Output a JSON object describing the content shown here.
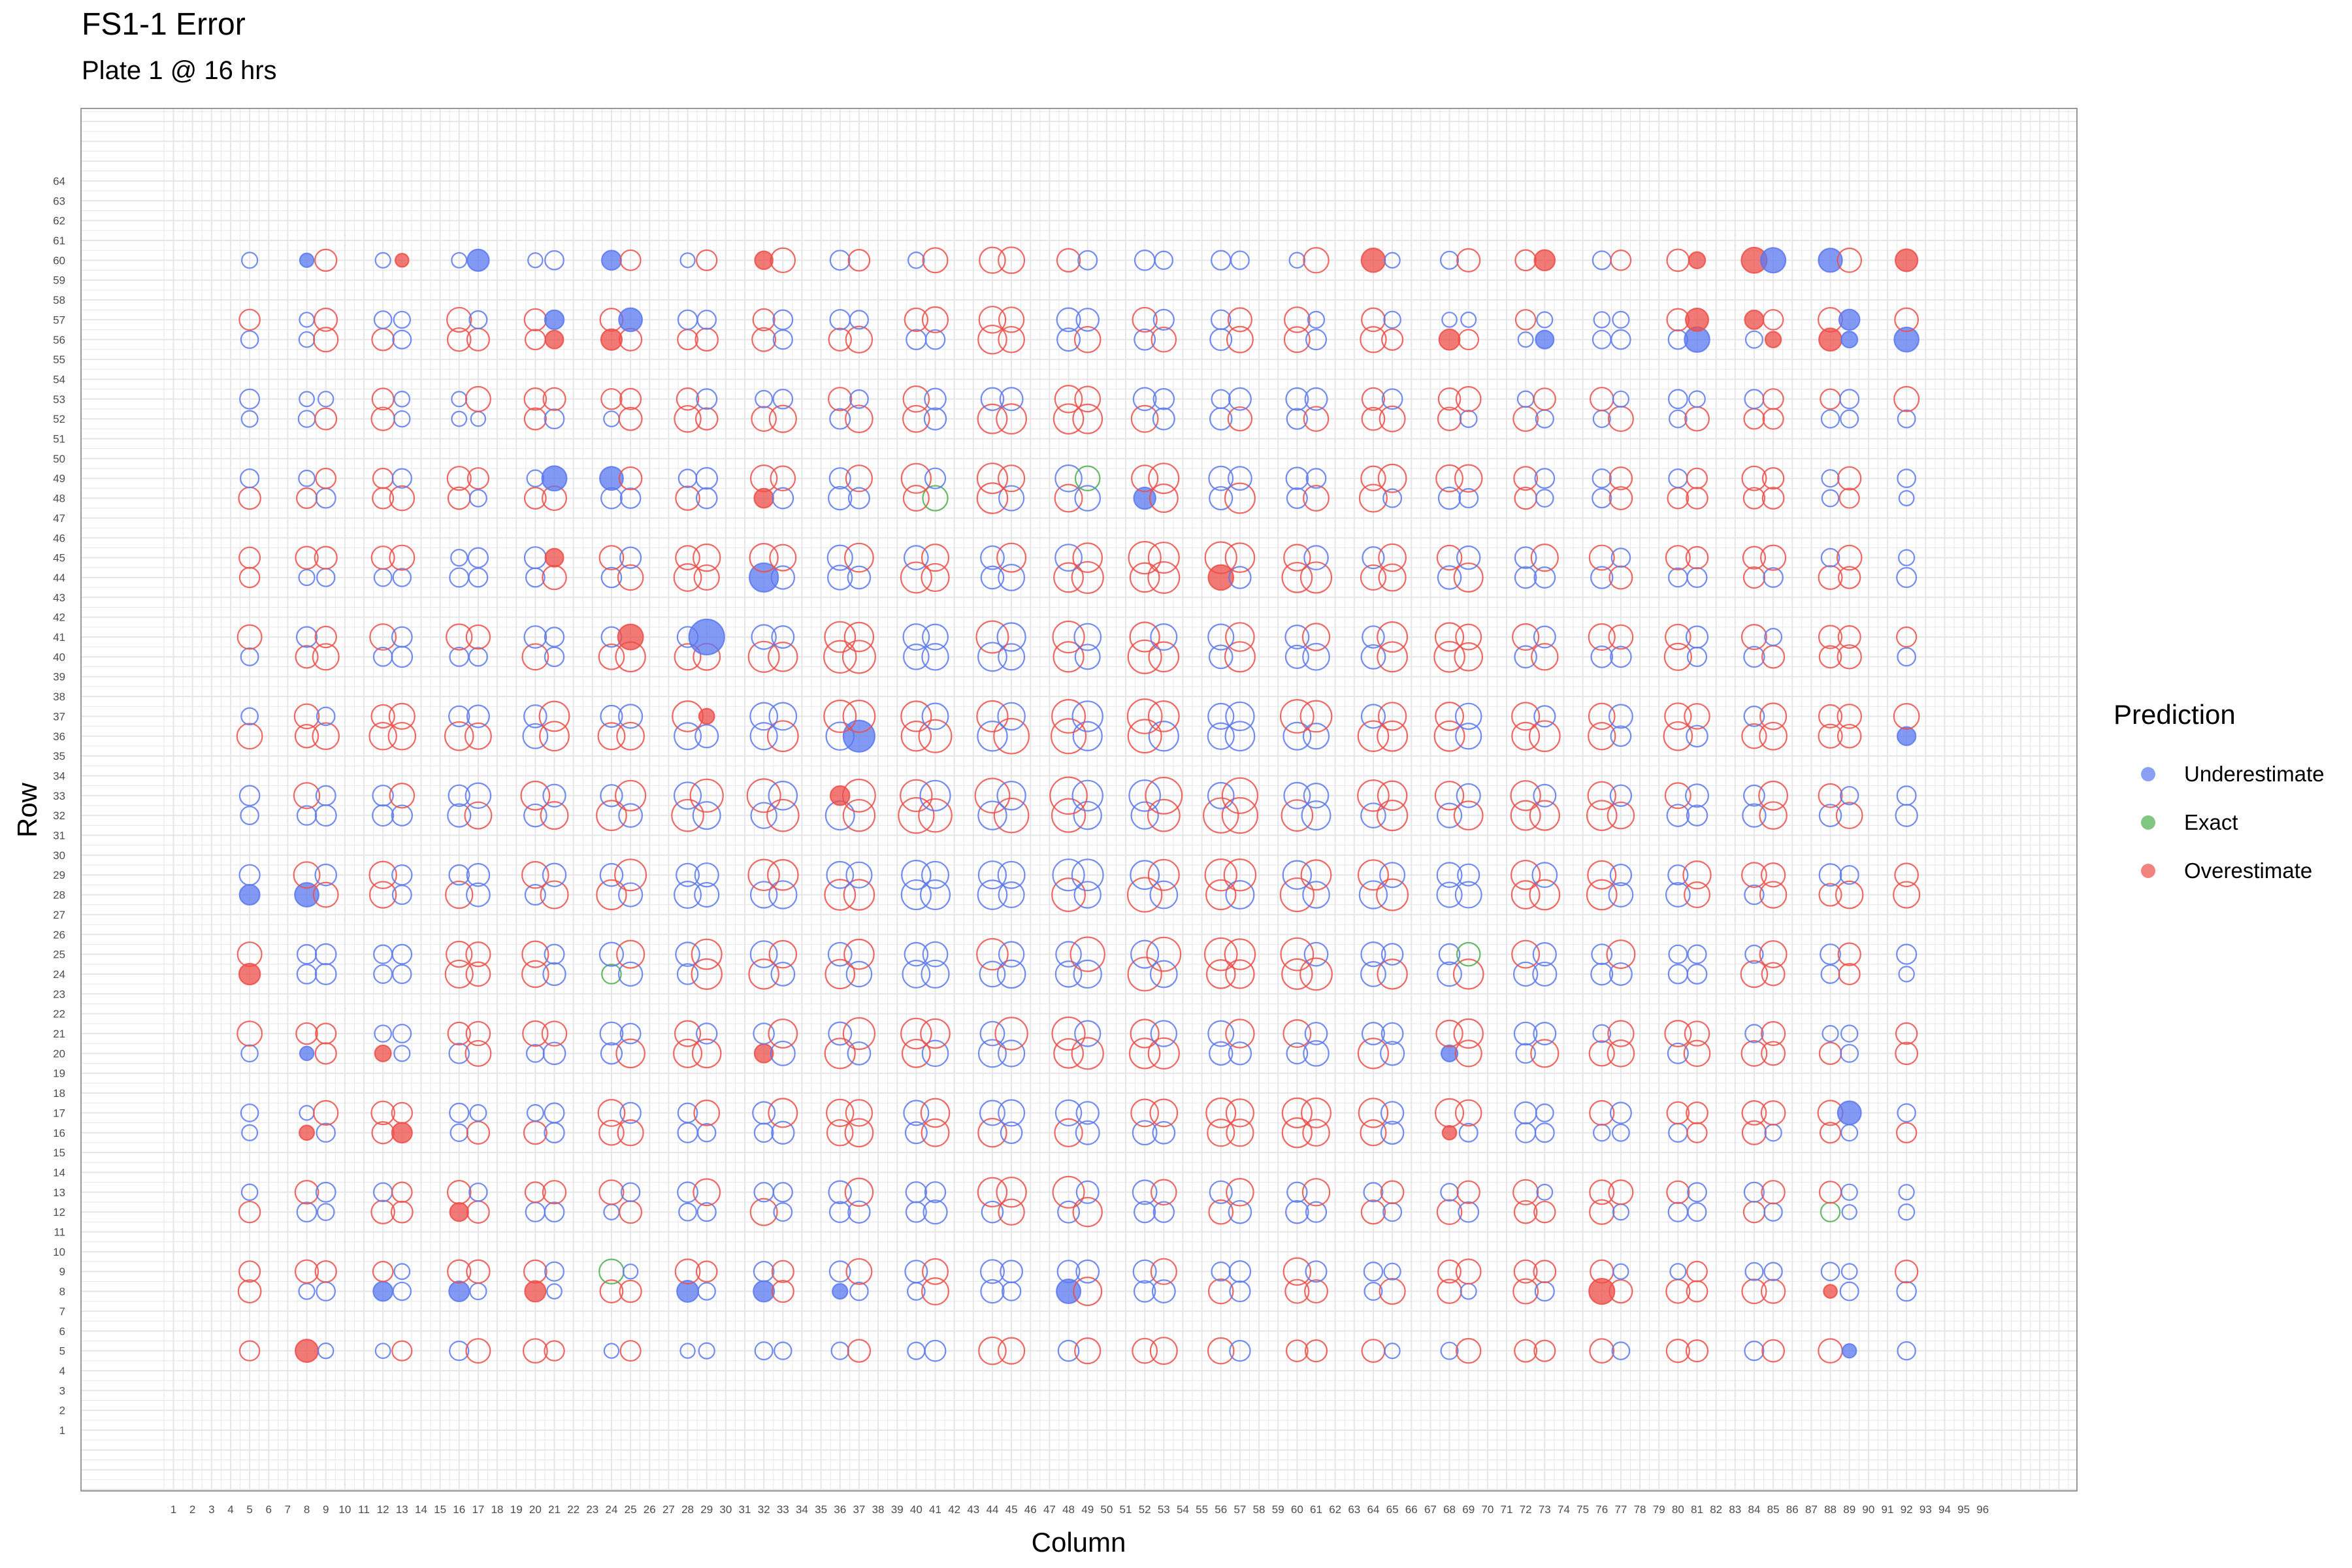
{
  "title": "FS1-1 Error",
  "subtitle": "Plate 1 @ 16 hrs",
  "chart_data": {
    "type": "scatter",
    "xlabel": "Column",
    "ylabel": "Row",
    "xlim": [
      1,
      96
    ],
    "ylim": [
      1,
      64
    ],
    "grid": true,
    "legend_title": "Prediction",
    "legend_position": "right",
    "categories": [
      "Underestimate",
      "Exact",
      "Overestimate"
    ],
    "colors": {
      "Underestimate": "#5a78f0",
      "Exact": "#4cae4c",
      "Overestimate": "#ee4e48"
    },
    "size_by": "absolute error",
    "column_pairs": [
      [
        5,
        5
      ],
      [
        8,
        9
      ],
      [
        12,
        13
      ],
      [
        16,
        17
      ],
      [
        20,
        21
      ],
      [
        24,
        25
      ],
      [
        28,
        29
      ],
      [
        32,
        33
      ],
      [
        36,
        37
      ],
      [
        40,
        41
      ],
      [
        44,
        45
      ],
      [
        48,
        49
      ],
      [
        52,
        53
      ],
      [
        56,
        57
      ],
      [
        60,
        61
      ],
      [
        64,
        65
      ],
      [
        68,
        69
      ],
      [
        72,
        73
      ],
      [
        76,
        77
      ],
      [
        80,
        81
      ],
      [
        84,
        85
      ],
      [
        88,
        89
      ],
      [
        92,
        92
      ]
    ],
    "row_pairs": [
      [
        5,
        5
      ],
      [
        8,
        9
      ],
      [
        12,
        13
      ],
      [
        16,
        17
      ],
      [
        20,
        21
      ],
      [
        24,
        25
      ],
      [
        28,
        29
      ],
      [
        32,
        33
      ],
      [
        36,
        37
      ],
      [
        40,
        41
      ],
      [
        44,
        45
      ],
      [
        48,
        49
      ],
      [
        52,
        53
      ],
      [
        56,
        57
      ],
      [
        60,
        60
      ]
    ],
    "filled_points": [
      {
        "x": 8,
        "y": 60,
        "prediction": "Underestimate"
      },
      {
        "x": 13,
        "y": 60,
        "prediction": "Overestimate"
      },
      {
        "x": 17,
        "y": 60,
        "prediction": "Underestimate"
      },
      {
        "x": 24,
        "y": 60,
        "prediction": "Underestimate"
      },
      {
        "x": 32,
        "y": 60,
        "prediction": "Overestimate"
      },
      {
        "x": 64,
        "y": 60,
        "prediction": "Overestimate"
      },
      {
        "x": 73,
        "y": 60,
        "prediction": "Overestimate"
      },
      {
        "x": 81,
        "y": 60,
        "prediction": "Overestimate"
      },
      {
        "x": 84,
        "y": 60,
        "prediction": "Overestimate"
      },
      {
        "x": 85,
        "y": 60,
        "prediction": "Underestimate"
      },
      {
        "x": 88,
        "y": 60,
        "prediction": "Underestimate"
      },
      {
        "x": 92,
        "y": 60,
        "prediction": "Overestimate"
      },
      {
        "x": 21,
        "y": 57,
        "prediction": "Underestimate"
      },
      {
        "x": 25,
        "y": 57,
        "prediction": "Underestimate"
      },
      {
        "x": 81,
        "y": 57,
        "prediction": "Overestimate"
      },
      {
        "x": 84,
        "y": 57,
        "prediction": "Overestimate"
      },
      {
        "x": 89,
        "y": 57,
        "prediction": "Underestimate"
      },
      {
        "x": 21,
        "y": 56,
        "prediction": "Overestimate"
      },
      {
        "x": 24,
        "y": 56,
        "prediction": "Overestimate"
      },
      {
        "x": 68,
        "y": 56,
        "prediction": "Overestimate"
      },
      {
        "x": 73,
        "y": 56,
        "prediction": "Underestimate"
      },
      {
        "x": 81,
        "y": 56,
        "prediction": "Underestimate"
      },
      {
        "x": 85,
        "y": 56,
        "prediction": "Overestimate"
      },
      {
        "x": 88,
        "y": 56,
        "prediction": "Overestimate"
      },
      {
        "x": 89,
        "y": 56,
        "prediction": "Underestimate"
      },
      {
        "x": 92,
        "y": 56,
        "prediction": "Underestimate"
      },
      {
        "x": 21,
        "y": 49,
        "prediction": "Underestimate"
      },
      {
        "x": 24,
        "y": 49,
        "prediction": "Underestimate"
      },
      {
        "x": 32,
        "y": 48,
        "prediction": "Overestimate"
      },
      {
        "x": 52,
        "y": 48,
        "prediction": "Underestimate"
      },
      {
        "x": 21,
        "y": 45,
        "prediction": "Overestimate"
      },
      {
        "x": 32,
        "y": 44,
        "prediction": "Underestimate"
      },
      {
        "x": 56,
        "y": 44,
        "prediction": "Overestimate"
      },
      {
        "x": 25,
        "y": 41,
        "prediction": "Overestimate"
      },
      {
        "x": 29,
        "y": 41,
        "prediction": "Underestimate"
      },
      {
        "x": 29,
        "y": 37,
        "prediction": "Overestimate"
      },
      {
        "x": 37,
        "y": 36,
        "prediction": "Underestimate"
      },
      {
        "x": 92,
        "y": 36,
        "prediction": "Underestimate"
      },
      {
        "x": 36,
        "y": 33,
        "prediction": "Overestimate"
      },
      {
        "x": 5,
        "y": 28,
        "prediction": "Underestimate"
      },
      {
        "x": 8,
        "y": 28,
        "prediction": "Underestimate"
      },
      {
        "x": 5,
        "y": 24,
        "prediction": "Overestimate"
      },
      {
        "x": 8,
        "y": 20,
        "prediction": "Underestimate"
      },
      {
        "x": 12,
        "y": 20,
        "prediction": "Overestimate"
      },
      {
        "x": 32,
        "y": 20,
        "prediction": "Overestimate"
      },
      {
        "x": 68,
        "y": 20,
        "prediction": "Underestimate"
      },
      {
        "x": 89,
        "y": 17,
        "prediction": "Underestimate"
      },
      {
        "x": 8,
        "y": 16,
        "prediction": "Overestimate"
      },
      {
        "x": 13,
        "y": 16,
        "prediction": "Overestimate"
      },
      {
        "x": 68,
        "y": 16,
        "prediction": "Overestimate"
      },
      {
        "x": 16,
        "y": 12,
        "prediction": "Overestimate"
      },
      {
        "x": 12,
        "y": 8,
        "prediction": "Underestimate"
      },
      {
        "x": 16,
        "y": 8,
        "prediction": "Underestimate"
      },
      {
        "x": 20,
        "y": 8,
        "prediction": "Overestimate"
      },
      {
        "x": 28,
        "y": 8,
        "prediction": "Underestimate"
      },
      {
        "x": 32,
        "y": 8,
        "prediction": "Underestimate"
      },
      {
        "x": 36,
        "y": 8,
        "prediction": "Underestimate"
      },
      {
        "x": 48,
        "y": 8,
        "prediction": "Underestimate"
      },
      {
        "x": 76,
        "y": 8,
        "prediction": "Overestimate"
      },
      {
        "x": 88,
        "y": 8,
        "prediction": "Overestimate"
      },
      {
        "x": 8,
        "y": 5,
        "prediction": "Overestimate"
      },
      {
        "x": 89,
        "y": 5,
        "prediction": "Underestimate"
      }
    ],
    "exact_points": [
      {
        "x": 49,
        "y": 49
      },
      {
        "x": 41,
        "y": 48
      },
      {
        "x": 24,
        "y": 24
      },
      {
        "x": 69,
        "y": 25
      },
      {
        "x": 88,
        "y": 12
      },
      {
        "x": 24,
        "y": 9
      }
    ]
  }
}
